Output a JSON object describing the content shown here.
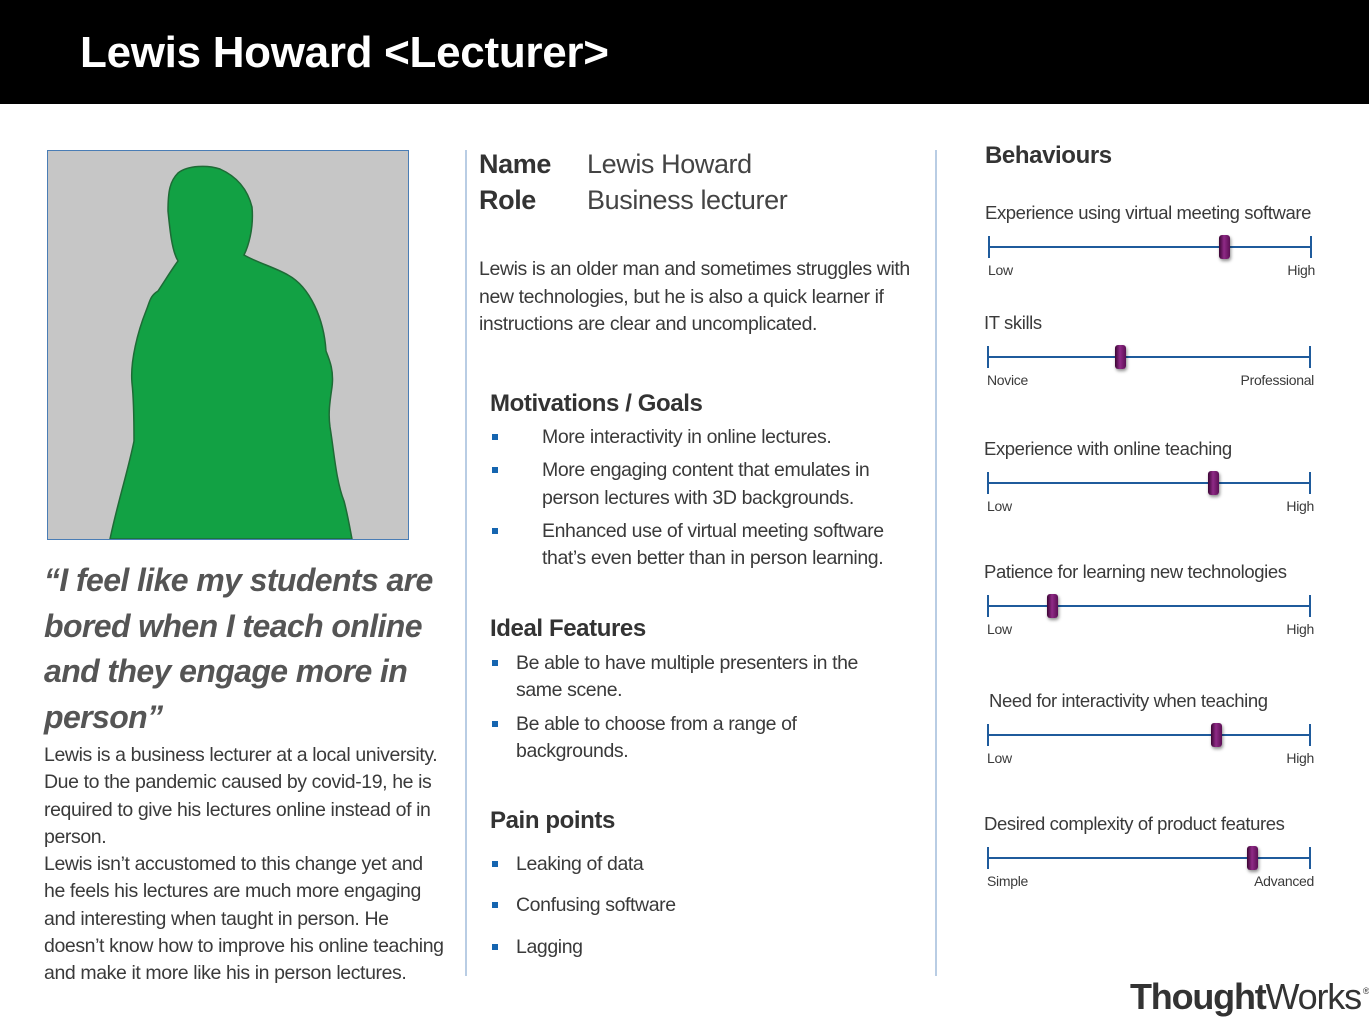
{
  "header": {
    "title": "Lewis Howard <Lecturer>"
  },
  "left": {
    "quote": "“I feel like my students are bored when I teach online and they engage more in person”",
    "bio": [
      "Lewis is a business lecturer at a local university. Due to the pandemic caused by covid-19, he is required to give his lectures online instead of in person.",
      "Lewis isn’t accustomed to this change yet and he feels his lectures are much more engaging and interesting when taught in person. He doesn’t know how to improve his online teaching and make it more like his in person lectures."
    ]
  },
  "profile": {
    "name_label": "Name",
    "name_value": "Lewis Howard",
    "role_label": "Role",
    "role_value": "Business lecturer",
    "summary": "Lewis is an older man and sometimes struggles with new technologies, but he is also a quick learner if instructions are clear and uncomplicated."
  },
  "motivations": {
    "title": "Motivations / Goals",
    "items": [
      "More interactivity in online lectures.",
      "More engaging content that emulates in person lectures with 3D backgrounds.",
      "Enhanced use of virtual meeting software that’s even better than in person learning."
    ]
  },
  "features": {
    "title": "Ideal Features",
    "items": [
      "Be able to have multiple presenters in the same scene.",
      "Be able to choose from a range of backgrounds."
    ]
  },
  "pain_points": {
    "title": "Pain points",
    "items": [
      "Leaking of data",
      "Confusing software",
      "Lagging"
    ]
  },
  "behaviours": {
    "title": "Behaviours",
    "scales": [
      {
        "label": "Experience using virtual meeting software",
        "min": "Low",
        "max": "High",
        "level": 0.73
      },
      {
        "label": "IT skills",
        "min": "Novice",
        "max": "Professional",
        "level": 0.41
      },
      {
        "label": "Experience with online teaching",
        "min": "Low",
        "max": "High",
        "level": 0.7
      },
      {
        "label": "Patience for learning new technologies",
        "min": "Low",
        "max": "High",
        "level": 0.2
      },
      {
        "label": "Need for interactivity when teaching",
        "min": "Low",
        "max": "High",
        "level": 0.71
      },
      {
        "label": "Desired complexity of product features",
        "min": "Simple",
        "max": "Advanced",
        "level": 0.82
      }
    ],
    "handle_color": "#7a1a72",
    "line_color": "#1f5b9c"
  },
  "logo": {
    "bold": "Thought",
    "regular": "Works",
    "mark": "®"
  },
  "colors": {
    "header_bg": "#000000",
    "silhouette": "#12a144",
    "photo_bg": "#c6c6c6",
    "bullet": "#1565b0"
  },
  "photo": {
    "icon": "person-silhouette-icon"
  }
}
